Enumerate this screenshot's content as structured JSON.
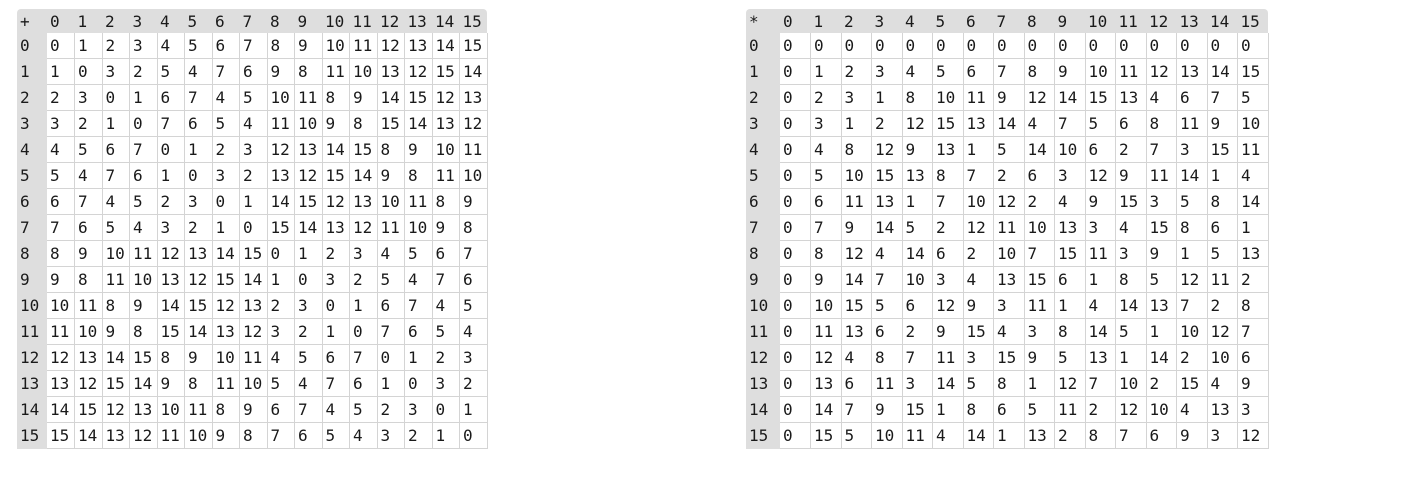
{
  "tables": [
    {
      "id": "addition",
      "operator": "+",
      "headers": [
        "0",
        "1",
        "2",
        "3",
        "4",
        "5",
        "6",
        "7",
        "8",
        "9",
        "10",
        "11",
        "12",
        "13",
        "14",
        "15"
      ],
      "rows": [
        {
          "label": "0",
          "cells": [
            "0",
            "1",
            "2",
            "3",
            "4",
            "5",
            "6",
            "7",
            "8",
            "9",
            "10",
            "11",
            "12",
            "13",
            "14",
            "15"
          ]
        },
        {
          "label": "1",
          "cells": [
            "1",
            "0",
            "3",
            "2",
            "5",
            "4",
            "7",
            "6",
            "9",
            "8",
            "11",
            "10",
            "13",
            "12",
            "15",
            "14"
          ]
        },
        {
          "label": "2",
          "cells": [
            "2",
            "3",
            "0",
            "1",
            "6",
            "7",
            "4",
            "5",
            "10",
            "11",
            "8",
            "9",
            "14",
            "15",
            "12",
            "13"
          ]
        },
        {
          "label": "3",
          "cells": [
            "3",
            "2",
            "1",
            "0",
            "7",
            "6",
            "5",
            "4",
            "11",
            "10",
            "9",
            "8",
            "15",
            "14",
            "13",
            "12"
          ]
        },
        {
          "label": "4",
          "cells": [
            "4",
            "5",
            "6",
            "7",
            "0",
            "1",
            "2",
            "3",
            "12",
            "13",
            "14",
            "15",
            "8",
            "9",
            "10",
            "11"
          ]
        },
        {
          "label": "5",
          "cells": [
            "5",
            "4",
            "7",
            "6",
            "1",
            "0",
            "3",
            "2",
            "13",
            "12",
            "15",
            "14",
            "9",
            "8",
            "11",
            "10"
          ]
        },
        {
          "label": "6",
          "cells": [
            "6",
            "7",
            "4",
            "5",
            "2",
            "3",
            "0",
            "1",
            "14",
            "15",
            "12",
            "13",
            "10",
            "11",
            "8",
            "9"
          ]
        },
        {
          "label": "7",
          "cells": [
            "7",
            "6",
            "5",
            "4",
            "3",
            "2",
            "1",
            "0",
            "15",
            "14",
            "13",
            "12",
            "11",
            "10",
            "9",
            "8"
          ]
        },
        {
          "label": "8",
          "cells": [
            "8",
            "9",
            "10",
            "11",
            "12",
            "13",
            "14",
            "15",
            "0",
            "1",
            "2",
            "3",
            "4",
            "5",
            "6",
            "7"
          ]
        },
        {
          "label": "9",
          "cells": [
            "9",
            "8",
            "11",
            "10",
            "13",
            "12",
            "15",
            "14",
            "1",
            "0",
            "3",
            "2",
            "5",
            "4",
            "7",
            "6"
          ]
        },
        {
          "label": "10",
          "cells": [
            "10",
            "11",
            "8",
            "9",
            "14",
            "15",
            "12",
            "13",
            "2",
            "3",
            "0",
            "1",
            "6",
            "7",
            "4",
            "5"
          ]
        },
        {
          "label": "11",
          "cells": [
            "11",
            "10",
            "9",
            "8",
            "15",
            "14",
            "13",
            "12",
            "3",
            "2",
            "1",
            "0",
            "7",
            "6",
            "5",
            "4"
          ]
        },
        {
          "label": "12",
          "cells": [
            "12",
            "13",
            "14",
            "15",
            "8",
            "9",
            "10",
            "11",
            "4",
            "5",
            "6",
            "7",
            "0",
            "1",
            "2",
            "3"
          ]
        },
        {
          "label": "13",
          "cells": [
            "13",
            "12",
            "15",
            "14",
            "9",
            "8",
            "11",
            "10",
            "5",
            "4",
            "7",
            "6",
            "1",
            "0",
            "3",
            "2"
          ]
        },
        {
          "label": "14",
          "cells": [
            "14",
            "15",
            "12",
            "13",
            "10",
            "11",
            "8",
            "9",
            "6",
            "7",
            "4",
            "5",
            "2",
            "3",
            "0",
            "1"
          ]
        },
        {
          "label": "15",
          "cells": [
            "15",
            "14",
            "13",
            "12",
            "11",
            "10",
            "9",
            "8",
            "7",
            "6",
            "5",
            "4",
            "3",
            "2",
            "1",
            "0"
          ]
        }
      ]
    },
    {
      "id": "multiplication",
      "operator": "*",
      "headers": [
        "0",
        "1",
        "2",
        "3",
        "4",
        "5",
        "6",
        "7",
        "8",
        "9",
        "10",
        "11",
        "12",
        "13",
        "14",
        "15"
      ],
      "rows": [
        {
          "label": "0",
          "cells": [
            "0",
            "0",
            "0",
            "0",
            "0",
            "0",
            "0",
            "0",
            "0",
            "0",
            "0",
            "0",
            "0",
            "0",
            "0",
            "0"
          ]
        },
        {
          "label": "1",
          "cells": [
            "0",
            "1",
            "2",
            "3",
            "4",
            "5",
            "6",
            "7",
            "8",
            "9",
            "10",
            "11",
            "12",
            "13",
            "14",
            "15"
          ]
        },
        {
          "label": "2",
          "cells": [
            "0",
            "2",
            "3",
            "1",
            "8",
            "10",
            "11",
            "9",
            "12",
            "14",
            "15",
            "13",
            "4",
            "6",
            "7",
            "5"
          ]
        },
        {
          "label": "3",
          "cells": [
            "0",
            "3",
            "1",
            "2",
            "12",
            "15",
            "13",
            "14",
            "4",
            "7",
            "5",
            "6",
            "8",
            "11",
            "9",
            "10"
          ]
        },
        {
          "label": "4",
          "cells": [
            "0",
            "4",
            "8",
            "12",
            "9",
            "13",
            "1",
            "5",
            "14",
            "10",
            "6",
            "2",
            "7",
            "3",
            "15",
            "11"
          ]
        },
        {
          "label": "5",
          "cells": [
            "0",
            "5",
            "10",
            "15",
            "13",
            "8",
            "7",
            "2",
            "6",
            "3",
            "12",
            "9",
            "11",
            "14",
            "1",
            "4"
          ]
        },
        {
          "label": "6",
          "cells": [
            "0",
            "6",
            "11",
            "13",
            "1",
            "7",
            "10",
            "12",
            "2",
            "4",
            "9",
            "15",
            "3",
            "5",
            "8",
            "14"
          ]
        },
        {
          "label": "7",
          "cells": [
            "0",
            "7",
            "9",
            "14",
            "5",
            "2",
            "12",
            "11",
            "10",
            "13",
            "3",
            "4",
            "15",
            "8",
            "6",
            "1"
          ]
        },
        {
          "label": "8",
          "cells": [
            "0",
            "8",
            "12",
            "4",
            "14",
            "6",
            "2",
            "10",
            "7",
            "15",
            "11",
            "3",
            "9",
            "1",
            "5",
            "13"
          ]
        },
        {
          "label": "9",
          "cells": [
            "0",
            "9",
            "14",
            "7",
            "10",
            "3",
            "4",
            "13",
            "15",
            "6",
            "1",
            "8",
            "5",
            "12",
            "11",
            "2"
          ]
        },
        {
          "label": "10",
          "cells": [
            "0",
            "10",
            "15",
            "5",
            "6",
            "12",
            "9",
            "3",
            "11",
            "1",
            "4",
            "14",
            "13",
            "7",
            "2",
            "8"
          ]
        },
        {
          "label": "11",
          "cells": [
            "0",
            "11",
            "13",
            "6",
            "2",
            "9",
            "15",
            "4",
            "3",
            "8",
            "14",
            "5",
            "1",
            "10",
            "12",
            "7"
          ]
        },
        {
          "label": "12",
          "cells": [
            "0",
            "12",
            "4",
            "8",
            "7",
            "11",
            "3",
            "15",
            "9",
            "5",
            "13",
            "1",
            "14",
            "2",
            "10",
            "6"
          ]
        },
        {
          "label": "13",
          "cells": [
            "0",
            "13",
            "6",
            "11",
            "3",
            "14",
            "5",
            "8",
            "1",
            "12",
            "7",
            "10",
            "2",
            "15",
            "4",
            "9"
          ]
        },
        {
          "label": "14",
          "cells": [
            "0",
            "14",
            "7",
            "9",
            "15",
            "1",
            "8",
            "6",
            "5",
            "11",
            "2",
            "12",
            "10",
            "4",
            "13",
            "3"
          ]
        },
        {
          "label": "15",
          "cells": [
            "0",
            "15",
            "5",
            "10",
            "11",
            "4",
            "14",
            "1",
            "13",
            "2",
            "8",
            "7",
            "6",
            "9",
            "3",
            "12"
          ]
        }
      ]
    }
  ]
}
